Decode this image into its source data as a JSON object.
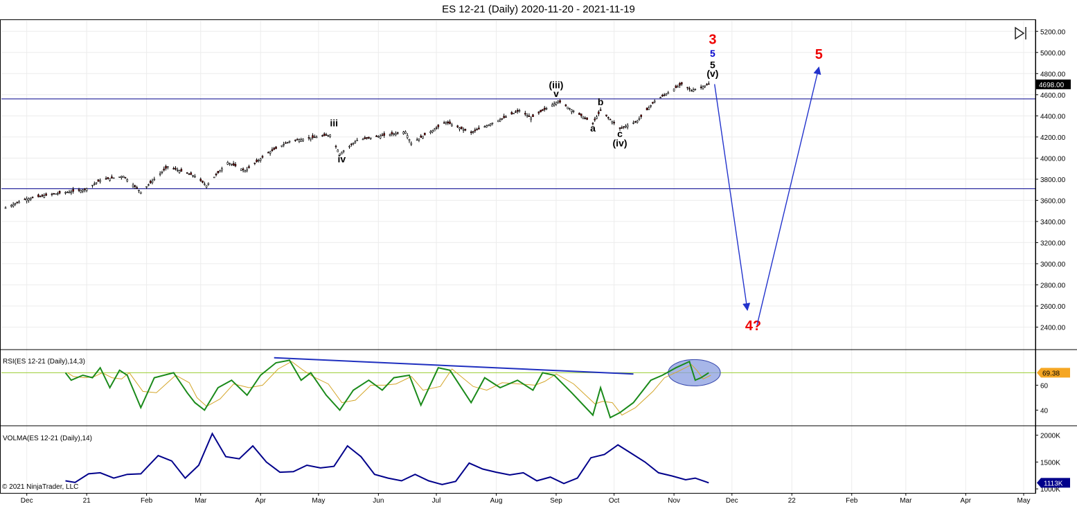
{
  "window": {
    "title": "ES 12-21 (Daily)  2020-11-20 - 2021-11-19",
    "copyright": "© 2021 NinjaTrader, LLC",
    "panel_toggle_icon": "collapse-panel-icon"
  },
  "colors": {
    "price_bar": "#000000",
    "down_candle": "#8b0000",
    "level_line": "#00008b",
    "rsi_line": "#1a8a1a",
    "rsi_signal": "#d4a62a",
    "rsi_level": "#9acd32",
    "volma_line": "#00008b",
    "projection_arrow": "#2233cc",
    "wave_red": "#ee0000",
    "wave_blue": "#0000cc",
    "highlight_fill": "#8a9ee0",
    "last_price_bg": "#000000",
    "rsi_value_bg": "#f5a623",
    "volma_value_bg": "#00008b"
  },
  "chart_data": [
    {
      "type": "line",
      "name": "price-panel",
      "series_kind": "candlestick-approximation",
      "ylim": [
        2200,
        5300
      ],
      "yticks": [
        "2400.00",
        "2600.00",
        "2800.00",
        "3000.00",
        "3200.00",
        "3400.00",
        "3600.00",
        "3800.00",
        "4000.00",
        "4200.00",
        "4400.00",
        "4600.00",
        "4800.00",
        "5000.00",
        "5200.00"
      ],
      "last_price": "4698.00",
      "last_value": 4698,
      "x_axis": {
        "ticks": [
          "Dec",
          "21",
          "Feb",
          "Mar",
          "Apr",
          "May",
          "Jun",
          "Jul",
          "Aug",
          "Sep",
          "Oct",
          "Nov",
          "Dec",
          "22",
          "Feb",
          "Mar",
          "Apr",
          "May"
        ],
        "tick_dates": [
          "2020-12-01",
          "2021-01-01",
          "2021-02-01",
          "2021-03-01",
          "2021-04-01",
          "2021-05-01",
          "2021-06-01",
          "2021-07-01",
          "2021-08-01",
          "2021-09-01",
          "2021-10-01",
          "2021-11-01",
          "2021-12-01",
          "2022-01-01",
          "2022-02-01",
          "2022-03-01",
          "2022-04-01",
          "2022-05-01"
        ]
      },
      "horizontal_lines": [
        4560,
        3710
      ],
      "close_path": [
        [
          "2020-11-20",
          3530
        ],
        [
          "2020-11-30",
          3610
        ],
        [
          "2020-12-15",
          3660
        ],
        [
          "2020-12-31",
          3700
        ],
        [
          "2021-01-08",
          3790
        ],
        [
          "2021-01-20",
          3830
        ],
        [
          "2021-01-29",
          3680
        ],
        [
          "2021-02-12",
          3920
        ],
        [
          "2021-02-26",
          3830
        ],
        [
          "2021-03-04",
          3740
        ],
        [
          "2021-03-15",
          3960
        ],
        [
          "2021-03-24",
          3880
        ],
        [
          "2021-04-05",
          4050
        ],
        [
          "2021-04-16",
          4160
        ],
        [
          "2021-05-07",
          4220
        ],
        [
          "2021-05-12",
          4040
        ],
        [
          "2021-05-21",
          4170
        ],
        [
          "2021-06-15",
          4250
        ],
        [
          "2021-06-18",
          4140
        ],
        [
          "2021-07-06",
          4340
        ],
        [
          "2021-07-19",
          4240
        ],
        [
          "2021-08-13",
          4450
        ],
        [
          "2021-08-19",
          4380
        ],
        [
          "2021-09-02",
          4540
        ],
        [
          "2021-09-20",
          4330
        ],
        [
          "2021-09-24",
          4450
        ],
        [
          "2021-10-04",
          4280
        ],
        [
          "2021-10-13",
          4350
        ],
        [
          "2021-10-22",
          4540
        ],
        [
          "2021-11-05",
          4700
        ],
        [
          "2021-11-10",
          4640
        ],
        [
          "2021-11-19",
          4698
        ]
      ],
      "wave_labels": [
        {
          "text": "iii",
          "date": "2021-05-09",
          "price": 4300,
          "color": "#000000"
        },
        {
          "text": "iv",
          "date": "2021-05-13",
          "price": 3960,
          "color": "#000000"
        },
        {
          "text": "(iii)",
          "date": "2021-09-01",
          "price": 4660,
          "color": "#000000"
        },
        {
          "text": "v",
          "date": "2021-09-01",
          "price": 4580,
          "color": "#000000"
        },
        {
          "text": "b",
          "date": "2021-09-24",
          "price": 4500,
          "color": "#000000"
        },
        {
          "text": "a",
          "date": "2021-09-20",
          "price": 4250,
          "color": "#000000"
        },
        {
          "text": "c",
          "date": "2021-10-04",
          "price": 4200,
          "color": "#000000"
        },
        {
          "text": "(iv)",
          "date": "2021-10-04",
          "price": 4110,
          "color": "#000000"
        },
        {
          "text": "(v)",
          "date": "2021-11-21",
          "price": 4770,
          "color": "#000000"
        },
        {
          "text": "5",
          "date": "2021-11-21",
          "price": 4850,
          "color": "#000000"
        },
        {
          "text": "5",
          "date": "2021-11-21",
          "price": 4960,
          "color": "#0000cc"
        },
        {
          "text": "3",
          "date": "2021-11-21",
          "price": 5080,
          "color": "#ee0000"
        },
        {
          "text": "4?",
          "date": "2021-12-12",
          "price": 2370,
          "color": "#ee0000"
        },
        {
          "text": "5",
          "date": "2022-01-15",
          "price": 4940,
          "color": "#ee0000"
        }
      ],
      "projection": [
        [
          "2021-11-22",
          4700
        ],
        [
          "2021-12-09",
          2560
        ],
        [
          "2021-12-14",
          2420
        ],
        [
          "2022-01-15",
          4860
        ]
      ]
    },
    {
      "type": "line",
      "name": "RSI(ES 12-21 (Daily),14,3)",
      "legend": "RSI(ES 12-21 (Daily),14,3)",
      "ylim": [
        28,
        88
      ],
      "yticks": [
        "40",
        "60"
      ],
      "reference_level": 70,
      "last_value_label": "69.38",
      "rsi": [
        [
          "2020-12-21",
          70
        ],
        [
          "2020-12-24",
          64
        ],
        [
          "2020-12-30",
          68
        ],
        [
          "2021-01-04",
          66
        ],
        [
          "2021-01-08",
          74
        ],
        [
          "2021-01-13",
          58
        ],
        [
          "2021-01-18",
          72
        ],
        [
          "2021-01-22",
          68
        ],
        [
          "2021-01-29",
          42
        ],
        [
          "2021-02-05",
          66
        ],
        [
          "2021-02-15",
          70
        ],
        [
          "2021-02-22",
          54
        ],
        [
          "2021-02-26",
          46
        ],
        [
          "2021-03-03",
          40
        ],
        [
          "2021-03-10",
          58
        ],
        [
          "2021-03-17",
          64
        ],
        [
          "2021-03-25",
          52
        ],
        [
          "2021-04-01",
          68
        ],
        [
          "2021-04-09",
          78
        ],
        [
          "2021-04-16",
          80
        ],
        [
          "2021-04-22",
          64
        ],
        [
          "2021-04-27",
          70
        ],
        [
          "2021-05-05",
          52
        ],
        [
          "2021-05-12",
          40
        ],
        [
          "2021-05-19",
          56
        ],
        [
          "2021-05-27",
          64
        ],
        [
          "2021-06-03",
          56
        ],
        [
          "2021-06-09",
          66
        ],
        [
          "2021-06-17",
          68
        ],
        [
          "2021-06-23",
          44
        ],
        [
          "2021-07-02",
          74
        ],
        [
          "2021-07-08",
          72
        ],
        [
          "2021-07-19",
          46
        ],
        [
          "2021-07-26",
          66
        ],
        [
          "2021-08-03",
          58
        ],
        [
          "2021-08-12",
          64
        ],
        [
          "2021-08-20",
          56
        ],
        [
          "2021-08-25",
          70
        ],
        [
          "2021-08-31",
          68
        ],
        [
          "2021-09-09",
          54
        ],
        [
          "2021-09-20",
          36
        ],
        [
          "2021-09-24",
          58
        ],
        [
          "2021-09-29",
          34
        ],
        [
          "2021-10-04",
          38
        ],
        [
          "2021-10-11",
          46
        ],
        [
          "2021-10-20",
          64
        ],
        [
          "2021-10-26",
          68
        ],
        [
          "2021-11-02",
          74
        ],
        [
          "2021-11-09",
          79
        ],
        [
          "2021-11-12",
          64
        ],
        [
          "2021-11-15",
          66
        ],
        [
          "2021-11-19",
          70
        ]
      ],
      "trendline": [
        [
          "2021-04-08",
          82
        ],
        [
          "2021-10-11",
          69
        ]
      ],
      "highlight": {
        "from": "2021-10-29",
        "to": "2021-11-25",
        "center_value": 70
      }
    },
    {
      "type": "line",
      "name": "VOLMA(ES 12-21 (Daily),14)",
      "legend": "VOLMA(ES 12-21 (Daily),14)",
      "ylim": [
        950000,
        2150000
      ],
      "yticks": [
        "1000K",
        "1500K",
        "2000K"
      ],
      "last_value_label": "1113K",
      "volma": [
        [
          "2020-12-21",
          1150
        ],
        [
          "2020-12-26",
          1120
        ],
        [
          "2021-01-02",
          1280
        ],
        [
          "2021-01-08",
          1300
        ],
        [
          "2021-01-15",
          1200
        ],
        [
          "2021-01-22",
          1270
        ],
        [
          "2021-01-29",
          1280
        ],
        [
          "2021-02-07",
          1620
        ],
        [
          "2021-02-14",
          1520
        ],
        [
          "2021-02-21",
          1200
        ],
        [
          "2021-02-28",
          1440
        ],
        [
          "2021-03-07",
          2030
        ],
        [
          "2021-03-14",
          1600
        ],
        [
          "2021-03-21",
          1560
        ],
        [
          "2021-03-28",
          1800
        ],
        [
          "2021-04-04",
          1500
        ],
        [
          "2021-04-11",
          1310
        ],
        [
          "2021-04-18",
          1320
        ],
        [
          "2021-04-25",
          1440
        ],
        [
          "2021-05-02",
          1390
        ],
        [
          "2021-05-09",
          1420
        ],
        [
          "2021-05-16",
          1800
        ],
        [
          "2021-05-23",
          1600
        ],
        [
          "2021-05-30",
          1270
        ],
        [
          "2021-06-06",
          1200
        ],
        [
          "2021-06-13",
          1150
        ],
        [
          "2021-06-20",
          1270
        ],
        [
          "2021-06-27",
          1150
        ],
        [
          "2021-07-04",
          1080
        ],
        [
          "2021-07-11",
          1140
        ],
        [
          "2021-07-18",
          1480
        ],
        [
          "2021-07-25",
          1370
        ],
        [
          "2021-08-01",
          1310
        ],
        [
          "2021-08-08",
          1260
        ],
        [
          "2021-08-15",
          1300
        ],
        [
          "2021-08-22",
          1150
        ],
        [
          "2021-08-29",
          1220
        ],
        [
          "2021-09-05",
          1100
        ],
        [
          "2021-09-12",
          1200
        ],
        [
          "2021-09-19",
          1580
        ],
        [
          "2021-09-26",
          1640
        ],
        [
          "2021-10-03",
          1820
        ],
        [
          "2021-10-10",
          1660
        ],
        [
          "2021-10-17",
          1500
        ],
        [
          "2021-10-24",
          1300
        ],
        [
          "2021-10-31",
          1240
        ],
        [
          "2021-11-07",
          1170
        ],
        [
          "2021-11-12",
          1200
        ],
        [
          "2021-11-19",
          1113
        ]
      ]
    }
  ]
}
